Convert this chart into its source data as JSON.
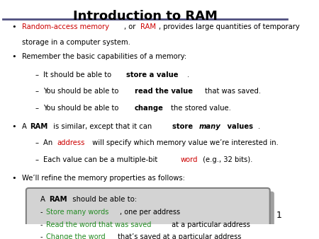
{
  "title": "Introduction to RAM",
  "title_underline_color": "#4F4F7F",
  "background_color": "#FFFFFF",
  "page_number": "1",
  "bullet_color": "#000000",
  "bullet_points": [
    {
      "level": 0,
      "text": "",
      "segments": [
        {
          "text": "Random-access memory",
          "color": "#CC0000",
          "weight": "normal"
        },
        {
          "text": ", or ",
          "color": "#000000",
          "weight": "normal"
        },
        {
          "text": "RAM",
          "color": "#CC0000",
          "weight": "normal"
        },
        {
          "text": ", provides large quantities of temporary\nstorage in a computer system.",
          "color": "#000000",
          "weight": "normal"
        }
      ]
    },
    {
      "level": 0,
      "text": "",
      "segments": [
        {
          "text": "Remember the basic capabilities of a memory:",
          "color": "#000000",
          "weight": "normal"
        }
      ]
    },
    {
      "level": 1,
      "text": "",
      "segments": [
        {
          "text": "It should be able to ",
          "color": "#000000",
          "weight": "normal"
        },
        {
          "text": "store a value",
          "color": "#000000",
          "weight": "bold"
        },
        {
          "text": ".",
          "color": "#000000",
          "weight": "normal"
        }
      ]
    },
    {
      "level": 1,
      "text": "",
      "segments": [
        {
          "text": "You should be able to ",
          "color": "#000000",
          "weight": "normal"
        },
        {
          "text": "read the value",
          "color": "#000000",
          "weight": "bold"
        },
        {
          "text": " that was saved.",
          "color": "#000000",
          "weight": "normal"
        }
      ]
    },
    {
      "level": 1,
      "text": "",
      "segments": [
        {
          "text": "You should be able to ",
          "color": "#000000",
          "weight": "normal"
        },
        {
          "text": "change",
          "color": "#000000",
          "weight": "bold"
        },
        {
          "text": " the stored value.",
          "color": "#000000",
          "weight": "normal"
        }
      ]
    },
    {
      "level": 0,
      "text": "",
      "segments": [
        {
          "text": "A ",
          "color": "#000000",
          "weight": "normal"
        },
        {
          "text": "RAM",
          "color": "#000000",
          "weight": "bold"
        },
        {
          "text": " is similar, except that it can ",
          "color": "#000000",
          "weight": "normal"
        },
        {
          "text": "store ",
          "color": "#000000",
          "weight": "bold"
        },
        {
          "text": "many",
          "color": "#000000",
          "weight": "bold_italic"
        },
        {
          "text": " values",
          "color": "#000000",
          "weight": "bold"
        },
        {
          "text": ".",
          "color": "#000000",
          "weight": "normal"
        }
      ]
    },
    {
      "level": 1,
      "text": "",
      "segments": [
        {
          "text": "An ",
          "color": "#000000",
          "weight": "normal"
        },
        {
          "text": "address",
          "color": "#CC0000",
          "weight": "normal"
        },
        {
          "text": " will specify which memory value we’re interested in.",
          "color": "#000000",
          "weight": "normal"
        }
      ]
    },
    {
      "level": 1,
      "text": "",
      "segments": [
        {
          "text": "Each value can be a multiple-bit ",
          "color": "#000000",
          "weight": "normal"
        },
        {
          "text": "word",
          "color": "#CC0000",
          "weight": "normal"
        },
        {
          "text": " (e.g., 32 bits).",
          "color": "#000000",
          "weight": "normal"
        }
      ]
    },
    {
      "level": 0,
      "text": "",
      "segments": [
        {
          "text": "We’ll refine the memory properties as follows:",
          "color": "#000000",
          "weight": "normal"
        }
      ]
    }
  ],
  "box_bg_color": "#D3D3D3",
  "box_border_color": "#808080",
  "box_title_segments": [
    {
      "text": "A ",
      "color": "#000000",
      "weight": "normal"
    },
    {
      "text": "RAM",
      "color": "#000000",
      "weight": "bold"
    },
    {
      "text": " should be able to:",
      "color": "#000000",
      "weight": "normal"
    }
  ],
  "box_lines": [
    {
      "segments": [
        {
          "text": "- ",
          "color": "#000000",
          "weight": "normal"
        },
        {
          "text": "Store many words",
          "color": "#228B22",
          "weight": "normal"
        },
        {
          "text": ", one per address",
          "color": "#000000",
          "weight": "normal"
        }
      ]
    },
    {
      "segments": [
        {
          "text": "- ",
          "color": "#000000",
          "weight": "normal"
        },
        {
          "text": "Read the word that was saved",
          "color": "#228B22",
          "weight": "normal"
        },
        {
          "text": " at a particular address",
          "color": "#000000",
          "weight": "normal"
        }
      ]
    },
    {
      "segments": [
        {
          "text": "- ",
          "color": "#000000",
          "weight": "normal"
        },
        {
          "text": "Change the word",
          "color": "#228B22",
          "weight": "normal"
        },
        {
          "text": " that’s saved at a particular address",
          "color": "#000000",
          "weight": "normal"
        }
      ]
    }
  ]
}
